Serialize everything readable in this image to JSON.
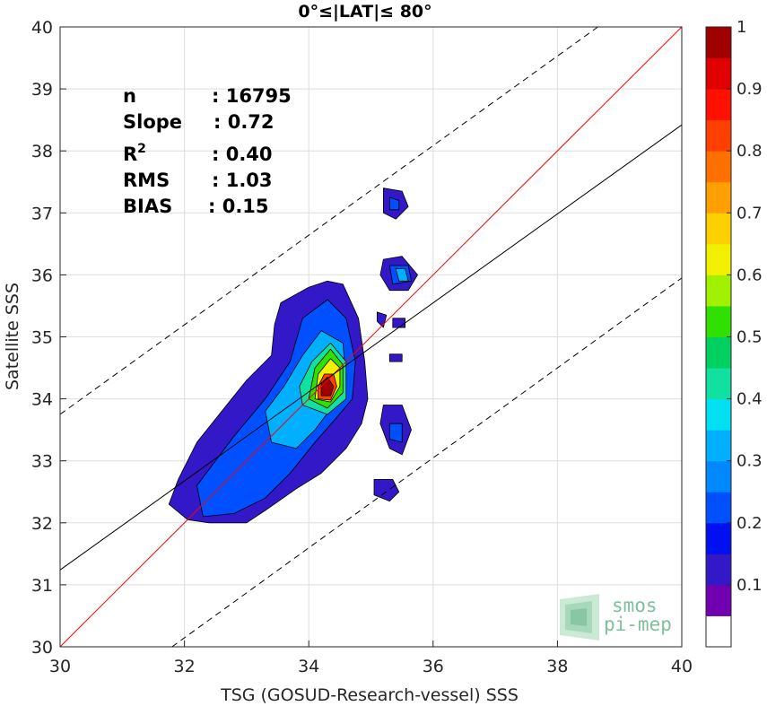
{
  "chart_data": {
    "type": "heatmap",
    "title": "0°≤|LAT|≤ 80°",
    "xlabel": "TSG (GOSUD-Research-vessel) SSS",
    "ylabel": "Satellite SSS",
    "xlim": [
      30,
      40
    ],
    "ylim": [
      30,
      40
    ],
    "x_ticks": [
      "30",
      "32",
      "34",
      "36",
      "38",
      "40"
    ],
    "y_ticks": [
      "30",
      "31",
      "32",
      "33",
      "34",
      "35",
      "36",
      "37",
      "38",
      "39",
      "40"
    ],
    "grid": true,
    "stats": [
      {
        "label": "n",
        "value": ": 16795"
      },
      {
        "label": "Slope",
        "value": ": 0.72"
      },
      {
        "label": "R",
        "sup": "2",
        "value": ": 0.40"
      },
      {
        "label": "RMS",
        "value": ": 1.03"
      },
      {
        "label": "BIAS",
        "value": ": 0.15"
      }
    ],
    "lines": [
      {
        "name": "one-to-one",
        "color": "#ff0000",
        "style": "solid",
        "points": [
          [
            30,
            30
          ],
          [
            40,
            40
          ]
        ]
      },
      {
        "name": "regression",
        "color": "#000000",
        "style": "solid",
        "points": [
          [
            30,
            31.24
          ],
          [
            40,
            38.42
          ]
        ]
      },
      {
        "name": "upper-bound",
        "color": "#000000",
        "style": "dashed",
        "points": [
          [
            30,
            33.75
          ],
          [
            38.65,
            40
          ]
        ]
      },
      {
        "name": "lower-bound",
        "color": "#000000",
        "style": "dashed",
        "points": [
          [
            31.8,
            30
          ],
          [
            40,
            35.95
          ]
        ]
      }
    ],
    "density_blobs": [
      {
        "level": 0.1,
        "points": [
          [
            32.05,
            32.05
          ],
          [
            32.4,
            32.0
          ],
          [
            33.0,
            32.0
          ],
          [
            33.3,
            32.2
          ],
          [
            33.8,
            32.55
          ],
          [
            34.2,
            32.8
          ],
          [
            34.6,
            33.2
          ],
          [
            34.85,
            33.6
          ],
          [
            34.95,
            34.0
          ],
          [
            34.9,
            34.6
          ],
          [
            34.8,
            35.3
          ],
          [
            34.55,
            35.85
          ],
          [
            34.3,
            35.9
          ],
          [
            34.0,
            35.8
          ],
          [
            33.55,
            35.55
          ],
          [
            33.45,
            35.2
          ],
          [
            33.4,
            34.7
          ],
          [
            33.0,
            34.3
          ],
          [
            32.6,
            33.8
          ],
          [
            32.2,
            33.3
          ],
          [
            31.9,
            32.7
          ],
          [
            31.75,
            32.3
          ]
        ]
      },
      {
        "level": 0.1,
        "points": [
          [
            35.2,
            37.4
          ],
          [
            35.5,
            37.35
          ],
          [
            35.6,
            37.1
          ],
          [
            35.4,
            36.9
          ],
          [
            35.2,
            37.0
          ]
        ]
      },
      {
        "level": 0.1,
        "points": [
          [
            35.2,
            36.25
          ],
          [
            35.5,
            36.3
          ],
          [
            35.75,
            36.0
          ],
          [
            35.6,
            35.75
          ],
          [
            35.3,
            35.75
          ],
          [
            35.15,
            36.0
          ]
        ]
      },
      {
        "level": 0.1,
        "points": [
          [
            35.2,
            33.9
          ],
          [
            35.5,
            33.9
          ],
          [
            35.65,
            33.5
          ],
          [
            35.5,
            33.1
          ],
          [
            35.3,
            33.2
          ],
          [
            35.15,
            33.6
          ]
        ]
      },
      {
        "level": 0.1,
        "points": [
          [
            35.05,
            32.7
          ],
          [
            35.35,
            32.7
          ],
          [
            35.45,
            32.5
          ],
          [
            35.3,
            32.35
          ],
          [
            35.05,
            32.45
          ]
        ]
      },
      {
        "level": 0.1,
        "points": [
          [
            35.35,
            35.3
          ],
          [
            35.55,
            35.3
          ],
          [
            35.55,
            35.15
          ],
          [
            35.35,
            35.15
          ]
        ]
      },
      {
        "level": 0.1,
        "points": [
          [
            35.1,
            35.4
          ],
          [
            35.25,
            35.35
          ],
          [
            35.2,
            35.15
          ],
          [
            35.1,
            35.25
          ]
        ]
      },
      {
        "level": 0.1,
        "points": [
          [
            35.3,
            34.72
          ],
          [
            35.5,
            34.72
          ],
          [
            35.5,
            34.6
          ],
          [
            35.3,
            34.6
          ]
        ]
      },
      {
        "level": 0.2,
        "points": [
          [
            32.3,
            32.1
          ],
          [
            32.8,
            32.15
          ],
          [
            33.3,
            32.4
          ],
          [
            33.7,
            32.8
          ],
          [
            34.1,
            33.3
          ],
          [
            34.45,
            33.7
          ],
          [
            34.7,
            34.0
          ],
          [
            34.75,
            34.6
          ],
          [
            34.6,
            35.3
          ],
          [
            34.3,
            35.6
          ],
          [
            33.9,
            35.3
          ],
          [
            33.7,
            34.6
          ],
          [
            33.3,
            34.0
          ],
          [
            32.8,
            33.4
          ],
          [
            32.2,
            32.6
          ]
        ]
      },
      {
        "level": 0.2,
        "points": [
          [
            35.3,
            37.25
          ],
          [
            35.45,
            37.2
          ],
          [
            35.45,
            37.05
          ],
          [
            35.3,
            37.05
          ]
        ]
      },
      {
        "level": 0.2,
        "points": [
          [
            35.3,
            36.15
          ],
          [
            35.6,
            36.15
          ],
          [
            35.65,
            35.9
          ],
          [
            35.35,
            35.85
          ]
        ]
      },
      {
        "level": 0.2,
        "points": [
          [
            35.3,
            33.6
          ],
          [
            35.5,
            33.6
          ],
          [
            35.5,
            33.3
          ],
          [
            35.3,
            33.35
          ]
        ]
      },
      {
        "level": 0.3,
        "points": [
          [
            33.4,
            33.3
          ],
          [
            33.8,
            33.2
          ],
          [
            34.1,
            33.5
          ],
          [
            34.4,
            33.9
          ],
          [
            34.6,
            34.3
          ],
          [
            34.55,
            34.9
          ],
          [
            34.2,
            35.1
          ],
          [
            33.9,
            34.7
          ],
          [
            33.6,
            34.2
          ],
          [
            33.3,
            33.8
          ]
        ]
      },
      {
        "level": 0.3,
        "points": [
          [
            35.4,
            36.1
          ],
          [
            35.55,
            36.1
          ],
          [
            35.6,
            35.9
          ],
          [
            35.45,
            35.9
          ]
        ]
      },
      {
        "level": 0.4,
        "points": [
          [
            33.9,
            33.9
          ],
          [
            34.3,
            33.75
          ],
          [
            34.6,
            34.0
          ],
          [
            34.6,
            34.6
          ],
          [
            34.35,
            34.9
          ],
          [
            34.05,
            34.6
          ],
          [
            33.85,
            34.2
          ]
        ]
      },
      {
        "level": 0.5,
        "points": [
          [
            34.0,
            34.0
          ],
          [
            34.3,
            33.85
          ],
          [
            34.55,
            34.1
          ],
          [
            34.55,
            34.55
          ],
          [
            34.35,
            34.8
          ],
          [
            34.1,
            34.5
          ]
        ]
      },
      {
        "level": 0.6,
        "points": [
          [
            34.1,
            34.0
          ],
          [
            34.35,
            33.95
          ],
          [
            34.5,
            34.2
          ],
          [
            34.5,
            34.5
          ],
          [
            34.35,
            34.65
          ],
          [
            34.15,
            34.4
          ]
        ]
      },
      {
        "level": 0.8,
        "points": [
          [
            34.15,
            34.0
          ],
          [
            34.35,
            33.98
          ],
          [
            34.45,
            34.2
          ],
          [
            34.4,
            34.4
          ],
          [
            34.25,
            34.4
          ],
          [
            34.15,
            34.2
          ]
        ]
      },
      {
        "level": 0.95,
        "points": [
          [
            34.2,
            34.05
          ],
          [
            34.35,
            34.05
          ],
          [
            34.4,
            34.2
          ],
          [
            34.3,
            34.35
          ],
          [
            34.2,
            34.25
          ]
        ]
      }
    ],
    "colorbar": {
      "ticks": [
        "0.1",
        "0.2",
        "0.3",
        "0.4",
        "0.5",
        "0.6",
        "0.7",
        "0.8",
        "0.9",
        "1"
      ],
      "colors": [
        "#ffffff",
        "#7000b0",
        "#3318c8",
        "#0010f0",
        "#0050ff",
        "#0088ff",
        "#00b0ff",
        "#00e0f0",
        "#10e0a0",
        "#00d060",
        "#30e000",
        "#a0f000",
        "#f0f000",
        "#ffd000",
        "#ffa000",
        "#ff7000",
        "#ff4000",
        "#ff1000",
        "#e00000",
        "#a00000"
      ]
    },
    "logo": {
      "line1": "smos",
      "line2": "pi-mep"
    }
  }
}
